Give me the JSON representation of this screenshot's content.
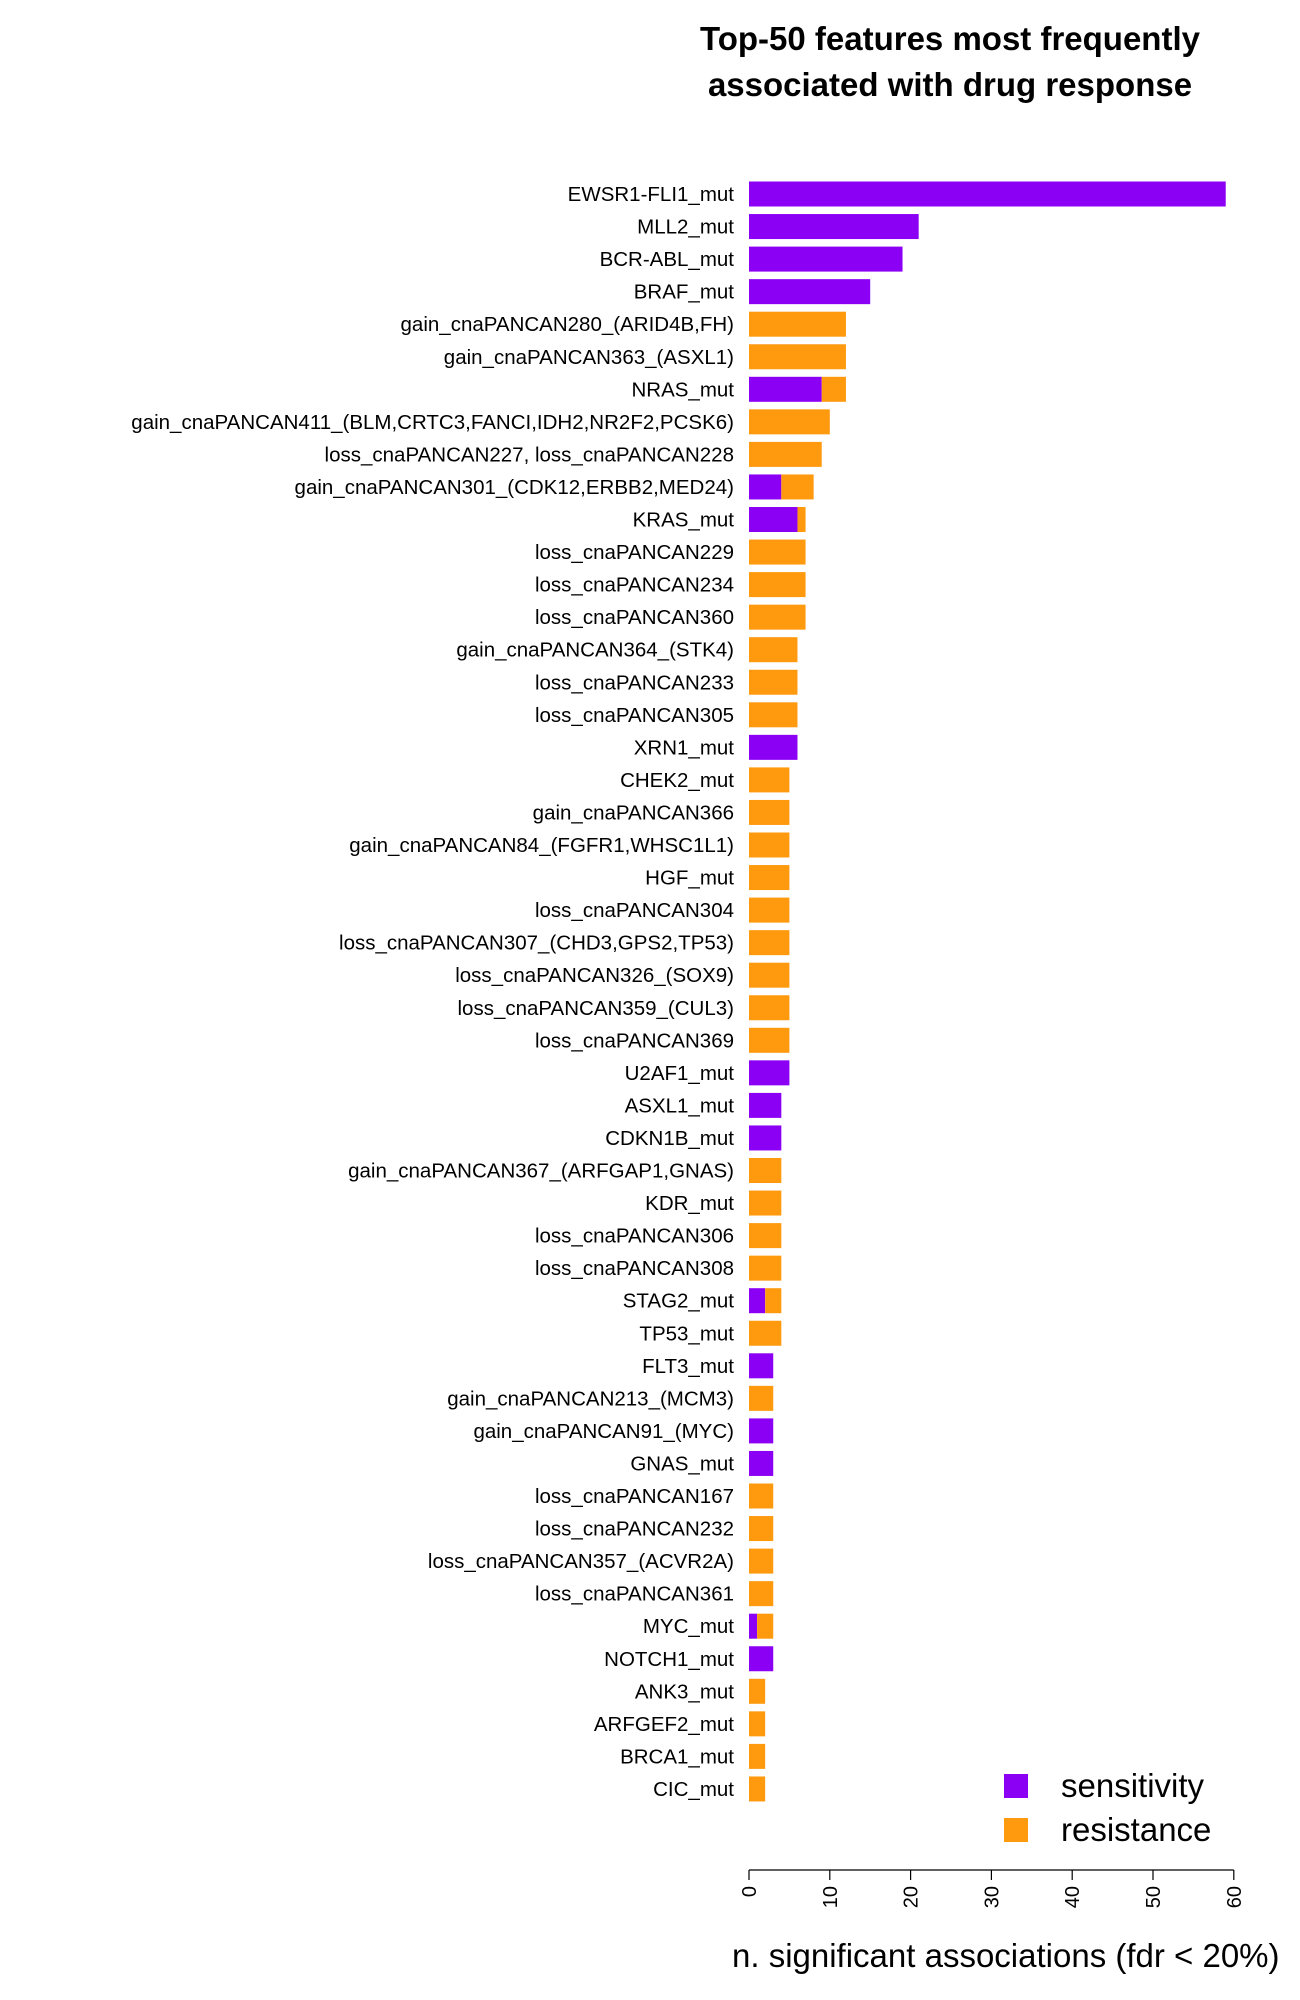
{
  "chart_data": {
    "type": "bar",
    "orientation": "horizontal",
    "stacked": true,
    "title_lines": [
      "Top-50 features most frequently",
      "associated with drug response"
    ],
    "xlabel": "n. significant associations (fdr < 20%)",
    "ylabel": "",
    "xlim": [
      0,
      60
    ],
    "x_ticks": [
      "0",
      "10",
      "20",
      "30",
      "40",
      "50",
      "60"
    ],
    "legend_position": "bottom-right",
    "grid": false,
    "categories": [
      "EWSR1-FLI1_mut",
      "MLL2_mut",
      "BCR-ABL_mut",
      "BRAF_mut",
      "gain_cnaPANCAN280_(ARID4B,FH)",
      "gain_cnaPANCAN363_(ASXL1)",
      "NRAS_mut",
      "gain_cnaPANCAN411_(BLM,CRTC3,FANCI,IDH2,NR2F2,PCSK6)",
      "loss_cnaPANCAN227, loss_cnaPANCAN228",
      "gain_cnaPANCAN301_(CDK12,ERBB2,MED24)",
      "KRAS_mut",
      "loss_cnaPANCAN229",
      "loss_cnaPANCAN234",
      "loss_cnaPANCAN360",
      "gain_cnaPANCAN364_(STK4)",
      "loss_cnaPANCAN233",
      "loss_cnaPANCAN305",
      "XRN1_mut",
      "CHEK2_mut",
      "gain_cnaPANCAN366",
      "gain_cnaPANCAN84_(FGFR1,WHSC1L1)",
      "HGF_mut",
      "loss_cnaPANCAN304",
      "loss_cnaPANCAN307_(CHD3,GPS2,TP53)",
      "loss_cnaPANCAN326_(SOX9)",
      "loss_cnaPANCAN359_(CUL3)",
      "loss_cnaPANCAN369",
      "U2AF1_mut",
      "ASXL1_mut",
      "CDKN1B_mut",
      "gain_cnaPANCAN367_(ARFGAP1,GNAS)",
      "KDR_mut",
      "loss_cnaPANCAN306",
      "loss_cnaPANCAN308",
      "STAG2_mut",
      "TP53_mut",
      "FLT3_mut",
      "gain_cnaPANCAN213_(MCM3)",
      "gain_cnaPANCAN91_(MYC)",
      "GNAS_mut",
      "loss_cnaPANCAN167",
      "loss_cnaPANCAN232",
      "loss_cnaPANCAN357_(ACVR2A)",
      "loss_cnaPANCAN361",
      "MYC_mut",
      "NOTCH1_mut",
      "ANK3_mut",
      "ARFGEF2_mut",
      "BRCA1_mut",
      "CIC_mut"
    ],
    "series": [
      {
        "name": "sensitivity",
        "color": "#8b00f5",
        "values": [
          59,
          21,
          19,
          15,
          0,
          0,
          9,
          0,
          0,
          4,
          6,
          0,
          0,
          0,
          0,
          0,
          0,
          6,
          0,
          0,
          0,
          0,
          0,
          0,
          0,
          0,
          0,
          5,
          4,
          4,
          0,
          0,
          0,
          0,
          2,
          0,
          3,
          0,
          3,
          3,
          0,
          0,
          0,
          0,
          1,
          3,
          0,
          0,
          0,
          0
        ]
      },
      {
        "name": "resistance",
        "color": "#ff9a0f",
        "values": [
          0,
          0,
          0,
          0,
          12,
          12,
          3,
          10,
          9,
          4,
          1,
          7,
          7,
          7,
          6,
          6,
          6,
          0,
          5,
          5,
          5,
          5,
          5,
          5,
          5,
          5,
          5,
          0,
          0,
          0,
          4,
          4,
          4,
          4,
          2,
          4,
          0,
          3,
          0,
          0,
          3,
          3,
          3,
          3,
          2,
          0,
          2,
          2,
          2,
          2
        ]
      }
    ]
  }
}
